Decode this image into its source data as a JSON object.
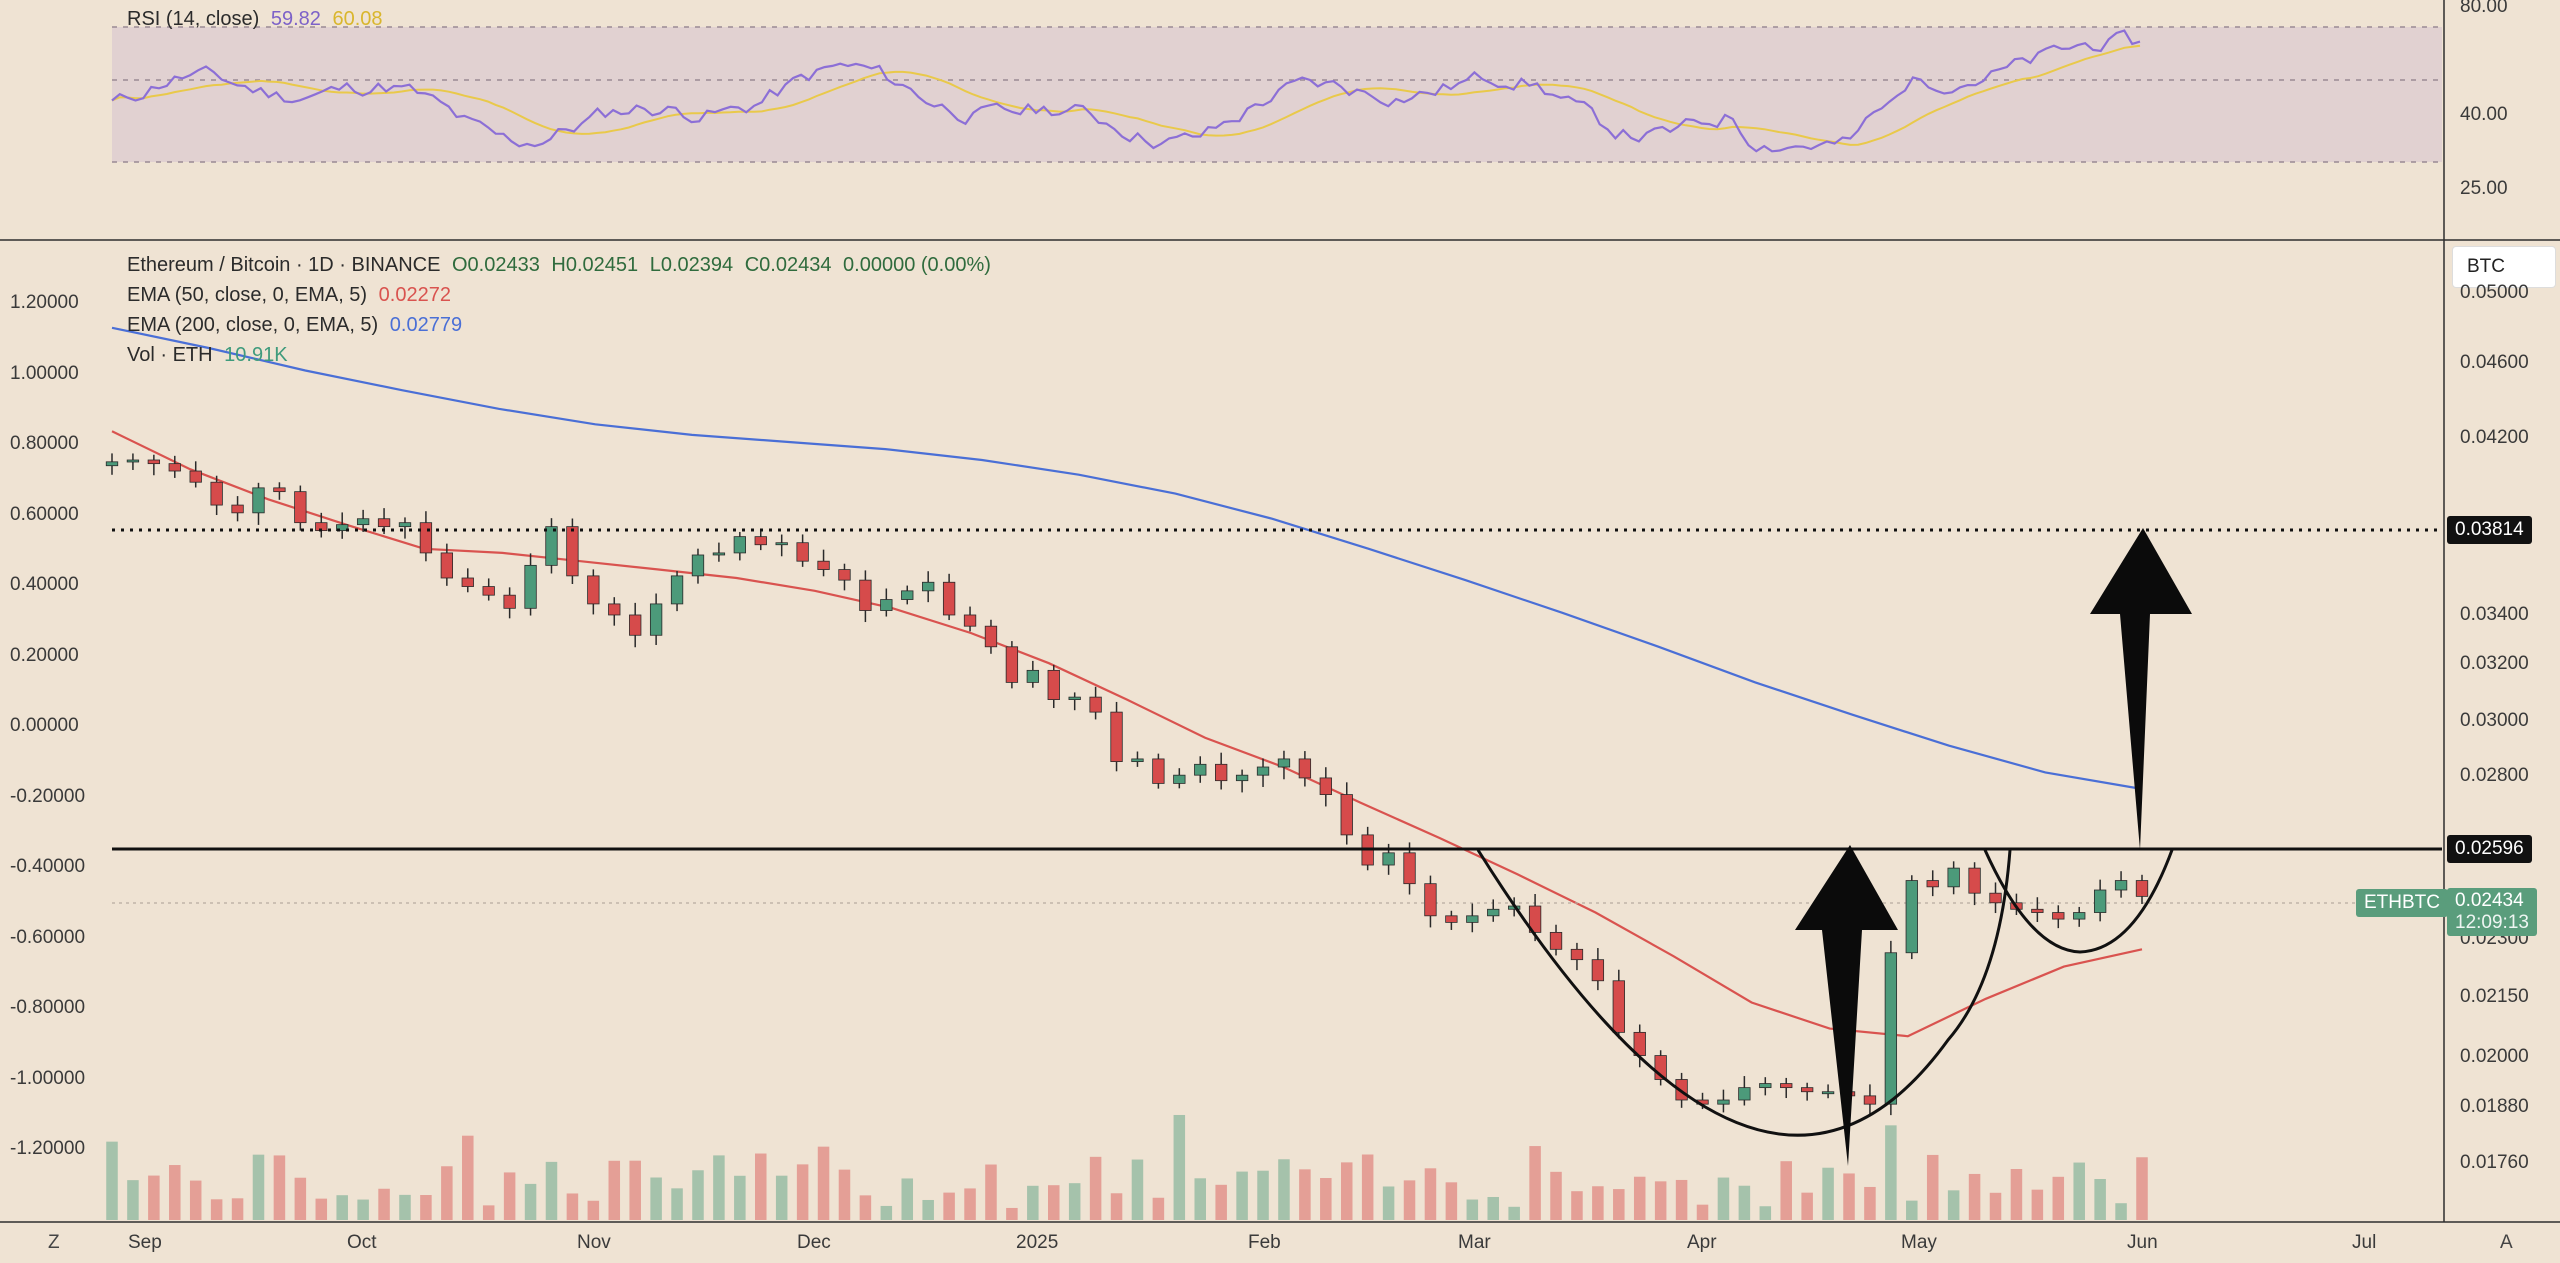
{
  "rsi_panel": {
    "title": "RSI (14, close)",
    "rsi_value": "59.82",
    "ma_value": "60.08",
    "levels": [
      "80.00",
      "40.00",
      "25.00"
    ]
  },
  "main_panel": {
    "symbol_line": "Ethereum / Bitcoin · 1D · BINANCE",
    "ohlc": {
      "o": "O0.02433",
      "h": "H0.02451",
      "l": "L0.02394",
      "c": "C0.02434",
      "chg": "0.00000 (0.00%)"
    },
    "ema50_label": "EMA (50, close, 0, EMA, 5)",
    "ema50_value": "0.02272",
    "ema200_label": "EMA (200, close, 0, EMA, 5)",
    "ema200_value": "0.02779",
    "vol_label": "Vol · ETH",
    "vol_value": "10.91K",
    "currency": "BTC",
    "ticker": "ETHBTC",
    "last_price": "0.02434",
    "countdown": "12:09:13",
    "level_top": "0.03814",
    "level_neck": "0.02596"
  },
  "colors": {
    "background": "#efe3d3",
    "up": "#4c9a7a",
    "down": "#d64b4b",
    "ema50": "#d9534f",
    "ema200": "#4a6fd6",
    "rsi": "#8c6fd6",
    "rsi_ma": "#e9c94a",
    "rsi_band": "#dccbd0"
  },
  "corner": {
    "left": "Z",
    "right": "A"
  },
  "chart_data": {
    "type": "line",
    "title": "Ethereum / Bitcoin · 1D · BINANCE",
    "x_ticks": [
      "Sep",
      "Oct",
      "Nov",
      "Dec",
      "2025",
      "Feb",
      "Mar",
      "Apr",
      "May",
      "Jun",
      "Jul"
    ],
    "right_ticks": [
      "0.05000",
      "0.04600",
      "0.04200",
      "0.03400",
      "0.03200",
      "0.03000",
      "0.02800",
      "0.02300",
      "0.02150",
      "0.02000",
      "0.01880",
      "0.01760"
    ],
    "left_ticks": [
      "1.20000",
      "1.00000",
      "0.80000",
      "0.60000",
      "0.40000",
      "0.20000",
      "0.00000",
      "-0.20000",
      "-0.40000",
      "-0.60000",
      "-0.80000",
      "-1.00000",
      "-1.20000"
    ],
    "ylim": [
      0.0172,
      0.052
    ],
    "log_scale": true,
    "grid": false,
    "series": [
      {
        "name": "ETHBTC close",
        "values": [
          0.0425,
          0.0426,
          0.0424,
          0.042,
          0.0414,
          0.0402,
          0.0398,
          0.0411,
          0.0409,
          0.0393,
          0.0389,
          0.0392,
          0.0395,
          0.0391,
          0.0393,
          0.0378,
          0.0366,
          0.0362,
          0.0358,
          0.0352,
          0.0372,
          0.0391,
          0.0367,
          0.0354,
          0.0349,
          0.034,
          0.0354,
          0.0367,
          0.0377,
          0.0378,
          0.0386,
          0.0382,
          0.0383,
          0.0374,
          0.037,
          0.0365,
          0.0351,
          0.0356,
          0.036,
          0.0364,
          0.0349,
          0.0344,
          0.0335,
          0.032,
          0.0325,
          0.0313,
          0.0314,
          0.0308,
          0.0289,
          0.029,
          0.0281,
          0.0284,
          0.0288,
          0.0282,
          0.0284,
          0.0287,
          0.029,
          0.0283,
          0.0277,
          0.0263,
          0.0253,
          0.0257,
          0.0247,
          0.0237,
          0.0235,
          0.0237,
          0.0239,
          0.024,
          0.0232,
          0.0227,
          0.0224,
          0.0218,
          0.0204,
          0.0198,
          0.0192,
          0.0187,
          0.0186,
          0.0187,
          0.019,
          0.0191,
          0.019,
          0.0189,
          0.0189,
          0.0188,
          0.0186,
          0.0226,
          0.0248,
          0.0246,
          0.0252,
          0.0244,
          0.0241,
          0.0239,
          0.0238,
          0.0236,
          0.0238,
          0.0245,
          0.0248,
          0.0243
        ]
      },
      {
        "name": "EMA (50, close, 0, EMA, 5)",
        "values": [
          0.0442,
          0.0421,
          0.0405,
          0.0392,
          0.038,
          0.0378,
          0.0374,
          0.037,
          0.0366,
          0.036,
          0.0352,
          0.0341,
          0.0328,
          0.0313,
          0.0298,
          0.0287,
          0.0274,
          0.0262,
          0.025,
          0.0238,
          0.0225,
          0.0212,
          0.0205,
          0.0203,
          0.0213,
          0.0222,
          0.0227
        ]
      },
      {
        "name": "EMA (200, close, 0, EMA, 5)",
        "values": [
          0.0505,
          0.0492,
          0.0478,
          0.0466,
          0.0455,
          0.0446,
          0.044,
          0.0436,
          0.0432,
          0.0426,
          0.0418,
          0.0408,
          0.0395,
          0.038,
          0.0365,
          0.035,
          0.0335,
          0.032,
          0.0307,
          0.0295,
          0.0285,
          0.0279
        ]
      }
    ],
    "annotations": [
      "0.03814",
      "0.02596"
    ]
  }
}
